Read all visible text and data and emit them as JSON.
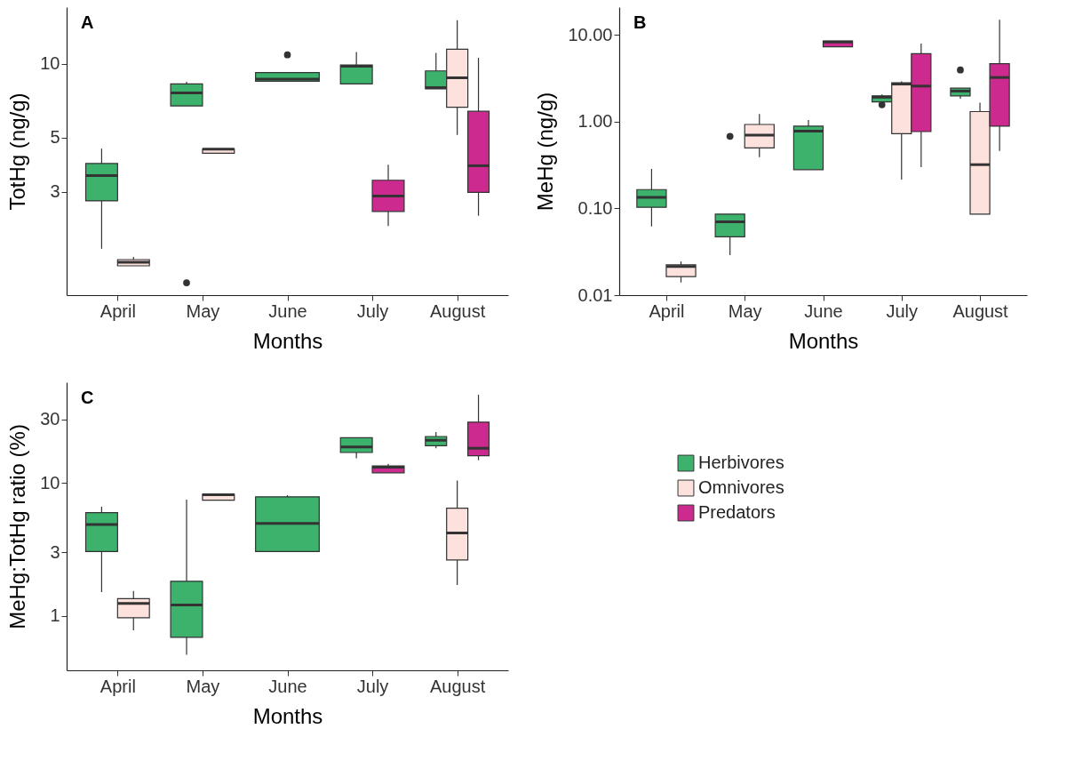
{
  "chart_data": [
    {
      "type": "box",
      "title": "A",
      "xlabel": "Months",
      "ylabel": "TotHg (ng/g)",
      "log": true,
      "ylim": [
        1.13,
        17.1
      ],
      "yticks": [
        3,
        5,
        10
      ],
      "categories": [
        "April",
        "May",
        "June",
        "July",
        "August"
      ],
      "series": [
        {
          "color": "#3cb26d",
          "boxes": [
            {
              "low": 1.75,
              "q1": 2.75,
              "median": 3.49,
              "q3": 3.91,
              "high": 4.5
            },
            {
              "low": 6.73,
              "q1": 6.73,
              "median": 7.62,
              "q3": 8.29,
              "high": 8.45,
              "outliers": [
                1.27
              ]
            },
            {
              "low": 8.5,
              "q1": 8.5,
              "median": 8.67,
              "q3": 9.22,
              "high": 9.22,
              "outliers": [
                10.9
              ]
            },
            {
              "low": 8.29,
              "q1": 8.29,
              "median": 9.8,
              "q3": 9.9,
              "high": 11.2
            },
            {
              "low": 7.92,
              "q1": 7.92,
              "median": 8.0,
              "q3": 9.37,
              "high": 11.1
            }
          ]
        },
        {
          "color": "#fde1dd",
          "boxes": [
            {
              "low": 1.49,
              "q1": 1.49,
              "median": 1.54,
              "q3": 1.58,
              "high": 1.62
            },
            {
              "low": 4.31,
              "q1": 4.31,
              "median": 4.48,
              "q3": 4.48,
              "high": 4.48
            },
            null,
            null,
            {
              "low": 5.12,
              "q1": 6.65,
              "median": 8.78,
              "q3": 11.5,
              "high": 15.1
            }
          ]
        },
        {
          "color": "#cd2a8f",
          "boxes": [
            null,
            null,
            null,
            {
              "low": 2.17,
              "q1": 2.49,
              "median": 2.88,
              "q3": 3.34,
              "high": 3.87
            },
            {
              "low": 2.39,
              "q1": 2.98,
              "median": 3.83,
              "q3": 6.4,
              "high": 10.6
            }
          ]
        }
      ]
    },
    {
      "type": "box",
      "title": "B",
      "xlabel": "Months",
      "ylabel": "MeHg (ng/g)",
      "log": true,
      "ylim": [
        0.01,
        21
      ],
      "yticks": [
        {
          "value": 0.01,
          "label": "0.01"
        },
        {
          "value": 0.1,
          "label": "0.10"
        },
        {
          "value": 1,
          "label": "1.00"
        },
        {
          "value": 10,
          "label": "10.00"
        }
      ],
      "categories": [
        "April",
        "May",
        "June",
        "July",
        "August"
      ],
      "series": [
        {
          "color": "#3cb26d",
          "boxes": [
            {
              "low": 0.062,
              "q1": 0.103,
              "median": 0.134,
              "q3": 0.165,
              "high": 0.286
            },
            {
              "low": 0.029,
              "q1": 0.047,
              "median": 0.07,
              "q3": 0.086,
              "high": 0.086,
              "outliers": [
                0.68
              ]
            },
            {
              "low": 0.28,
              "q1": 0.28,
              "median": 0.78,
              "q3": 0.89,
              "high": 1.05
            },
            {
              "low": 1.69,
              "q1": 1.69,
              "median": 1.92,
              "q3": 1.99,
              "high": 2.07,
              "outliers": [
                1.57
              ]
            },
            {
              "low": 1.84,
              "q1": 1.99,
              "median": 2.26,
              "q3": 2.44,
              "high": 2.44,
              "outliers": [
                3.96
              ]
            }
          ]
        },
        {
          "color": "#fde1dd",
          "boxes": [
            {
              "low": 0.014,
              "q1": 0.0164,
              "median": 0.0214,
              "q3": 0.0224,
              "high": 0.0245
            },
            {
              "low": 0.39,
              "q1": 0.5,
              "median": 0.7,
              "q3": 0.93,
              "high": 1.23
            },
            null,
            {
              "low": 0.215,
              "q1": 0.73,
              "median": 2.72,
              "q3": 2.82,
              "high": 2.93
            },
            {
              "low": 0.086,
              "q1": 0.086,
              "median": 0.32,
              "q3": 1.31,
              "high": 1.66
            }
          ]
        },
        {
          "color": "#cd2a8f",
          "boxes": [
            null,
            null,
            {
              "low": 7.33,
              "q1": 7.33,
              "median": 8.32,
              "q3": 8.55,
              "high": 8.55
            },
            {
              "low": 0.3,
              "q1": 0.77,
              "median": 2.58,
              "q3": 6.09,
              "high": 8.0
            },
            {
              "low": 0.46,
              "q1": 0.89,
              "median": 3.24,
              "q3": 4.68,
              "high": 15
            }
          ]
        }
      ]
    },
    {
      "type": "box",
      "title": "C",
      "xlabel": "Months",
      "ylabel": "MeHg:TotHg ratio (%)",
      "log": true,
      "ylim": [
        0.39,
        57
      ],
      "yticks": [
        1,
        3,
        10,
        30
      ],
      "legend": "right",
      "categories": [
        "April",
        "May",
        "June",
        "July",
        "August"
      ],
      "series": [
        {
          "name": "Herbivores",
          "color": "#3cb26d",
          "boxes": [
            {
              "low": 1.51,
              "q1": 3.05,
              "median": 4.87,
              "q3": 5.98,
              "high": 6.62
            },
            {
              "low": 0.51,
              "q1": 0.69,
              "median": 1.21,
              "q3": 1.82,
              "high": 7.49
            },
            {
              "low": 3.05,
              "q1": 3.05,
              "median": 4.95,
              "q3": 7.85,
              "high": 8.09
            },
            {
              "low": 15.3,
              "q1": 16.9,
              "median": 18.6,
              "q3": 21.8,
              "high": 21.8
            },
            {
              "low": 18.2,
              "q1": 19.0,
              "median": 20.9,
              "q3": 22.3,
              "high": 24.1
            }
          ]
        },
        {
          "name": "Omnivores",
          "color": "#fde1dd",
          "boxes": [
            {
              "low": 0.78,
              "q1": 0.97,
              "median": 1.24,
              "q3": 1.35,
              "high": 1.54
            },
            {
              "low": 7.4,
              "q1": 7.4,
              "median": 8.13,
              "q3": 8.23,
              "high": 8.23
            },
            null,
            null,
            {
              "low": 1.71,
              "q1": 2.63,
              "median": 4.2,
              "q3": 6.46,
              "high": 10.4
            }
          ]
        },
        {
          "name": "Predators",
          "color": "#cd2a8f",
          "boxes": [
            null,
            null,
            null,
            {
              "low": 11.9,
              "q1": 11.9,
              "median": 13.1,
              "q3": 13.4,
              "high": 13.9
            },
            {
              "low": 14.8,
              "q1": 16.0,
              "median": 18.2,
              "q3": 28.6,
              "high": 45.9
            }
          ]
        }
      ]
    }
  ]
}
